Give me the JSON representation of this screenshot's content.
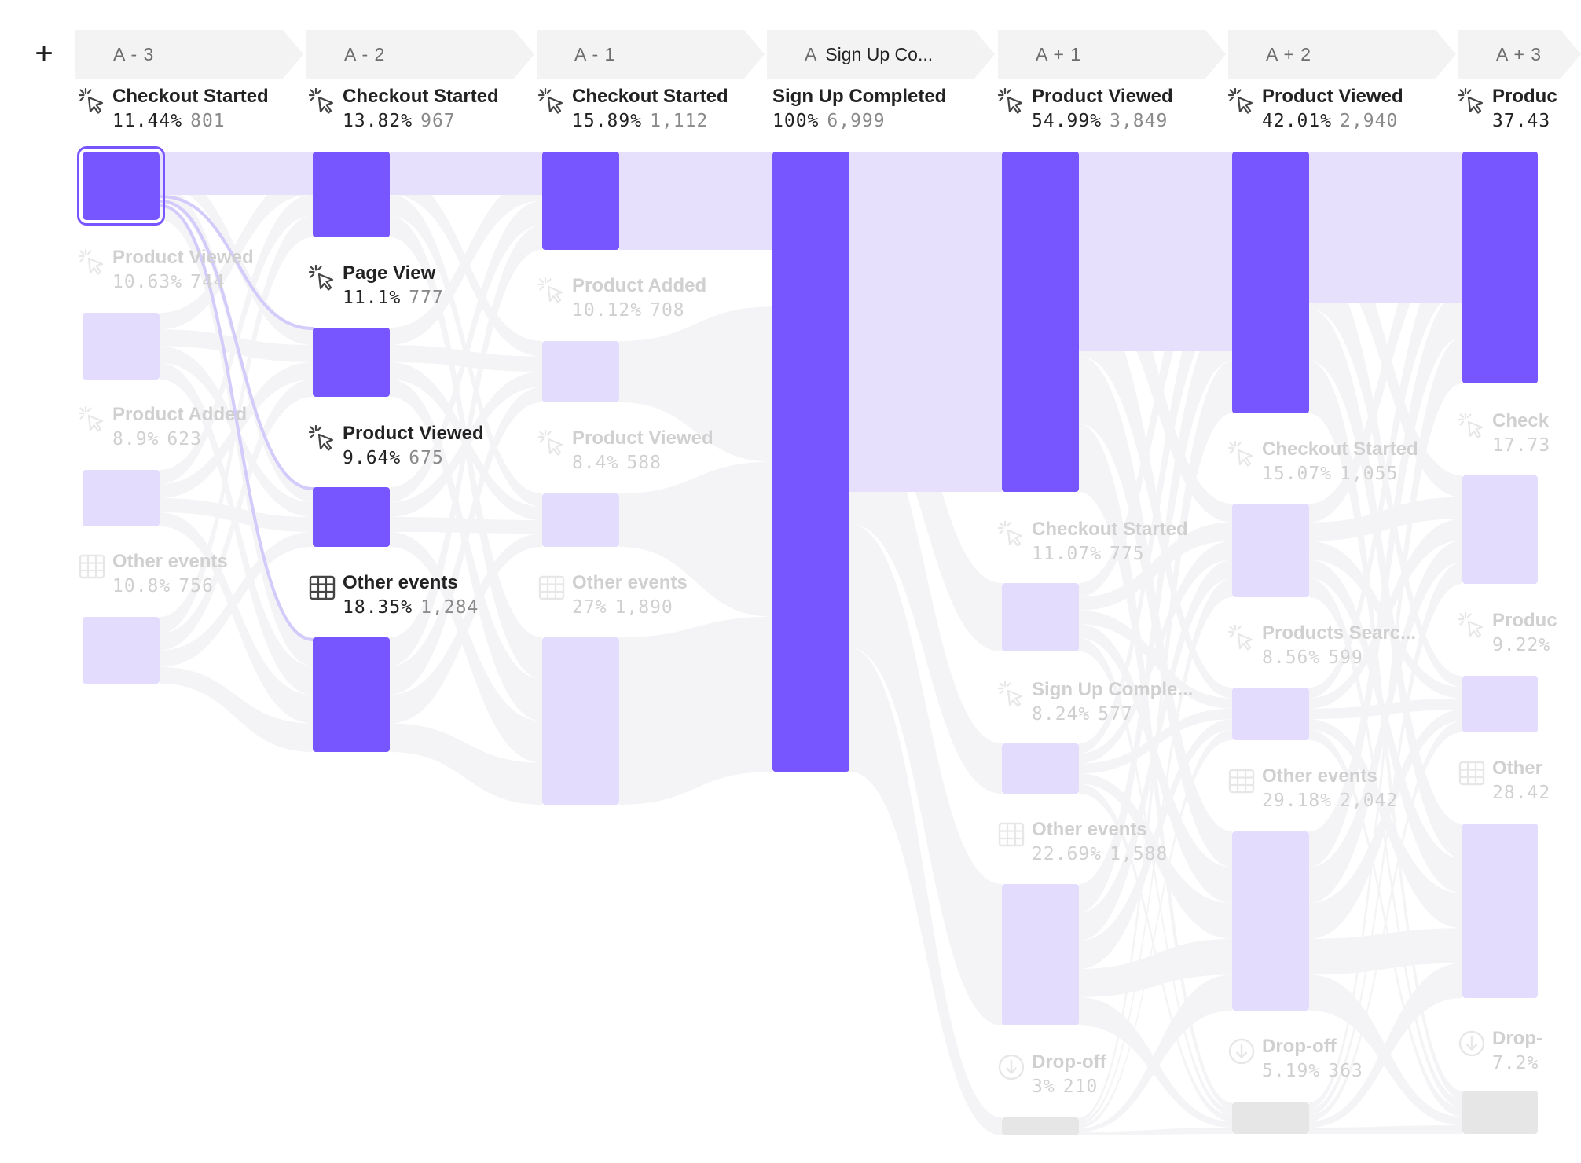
{
  "toolbar": {
    "add_icon": "plus-icon",
    "add_label": "+"
  },
  "colors": {
    "active_bar": "#7856ff",
    "inactive_bar": "#e3dcfd",
    "dropoff_bar": "#e6e6e6",
    "flow_main": "#e6e0fd",
    "flow_faint": "#f4f4f6",
    "flow_highlight": "#d4cbfb",
    "header_bg": "#f3f3f3",
    "dim_text": "#d0d0d0"
  },
  "columns": [
    {
      "tag": "A - 3",
      "name": "",
      "nodes": [
        {
          "name": "Checkout Started",
          "pct": "11.44%",
          "count": "801",
          "icon": "click-cursor-icon",
          "active": true,
          "selected": true,
          "share": 0.1144
        },
        {
          "name": "Product Viewed",
          "pct": "10.63%",
          "count": "744",
          "icon": "click-cursor-icon",
          "active": false,
          "share": 0.1063
        },
        {
          "name": "Product Added",
          "pct": "8.9%",
          "count": "623",
          "icon": "click-cursor-icon",
          "active": false,
          "share": 0.089
        },
        {
          "name": "Other events",
          "pct": "10.8%",
          "count": "756",
          "icon": "grid-icon",
          "active": false,
          "share": 0.108
        }
      ]
    },
    {
      "tag": "A - 2",
      "name": "",
      "nodes": [
        {
          "name": "Checkout Started",
          "pct": "13.82%",
          "count": "967",
          "icon": "click-cursor-icon",
          "active": true,
          "share": 0.1382
        },
        {
          "name": "Page View",
          "pct": "11.1%",
          "count": "777",
          "icon": "click-cursor-icon",
          "active": true,
          "share": 0.111
        },
        {
          "name": "Product Viewed",
          "pct": "9.64%",
          "count": "675",
          "icon": "click-cursor-icon",
          "active": true,
          "share": 0.0964
        },
        {
          "name": "Other events",
          "pct": "18.35%",
          "count": "1,284",
          "icon": "grid-icon",
          "active": true,
          "share": 0.1835
        }
      ]
    },
    {
      "tag": "A - 1",
      "name": "",
      "nodes": [
        {
          "name": "Checkout Started",
          "pct": "15.89%",
          "count": "1,112",
          "icon": "click-cursor-icon",
          "active": true,
          "share": 0.1589
        },
        {
          "name": "Product Added",
          "pct": "10.12%",
          "count": "708",
          "icon": "click-cursor-icon",
          "active": false,
          "share": 0.1012
        },
        {
          "name": "Product Viewed",
          "pct": "8.4%",
          "count": "588",
          "icon": "click-cursor-icon",
          "active": false,
          "share": 0.084
        },
        {
          "name": "Other events",
          "pct": "27%",
          "count": "1,890",
          "icon": "grid-icon",
          "active": false,
          "share": 0.27
        }
      ]
    },
    {
      "tag": "A",
      "name": "Sign Up Co...",
      "nodes": [
        {
          "name": "Sign Up Completed",
          "pct": "100%",
          "count": "6,999",
          "icon": "",
          "active": true,
          "share": 1.0
        }
      ]
    },
    {
      "tag": "A + 1",
      "name": "",
      "nodes": [
        {
          "name": "Product Viewed",
          "pct": "54.99%",
          "count": "3,849",
          "icon": "click-cursor-icon",
          "active": true,
          "share": 0.5499
        },
        {
          "name": "Checkout Started",
          "pct": "11.07%",
          "count": "775",
          "icon": "click-cursor-icon",
          "active": false,
          "share": 0.1107
        },
        {
          "name": "Sign Up Comple...",
          "pct": "8.24%",
          "count": "577",
          "icon": "click-cursor-icon",
          "active": false,
          "share": 0.0824
        },
        {
          "name": "Other events",
          "pct": "22.69%",
          "count": "1,588",
          "icon": "grid-icon",
          "active": false,
          "share": 0.2269
        },
        {
          "name": "Drop-off",
          "pct": "3%",
          "count": "210",
          "icon": "drop-off-icon",
          "active": false,
          "drop": true,
          "share": 0.03
        }
      ]
    },
    {
      "tag": "A + 2",
      "name": "",
      "nodes": [
        {
          "name": "Product Viewed",
          "pct": "42.01%",
          "count": "2,940",
          "icon": "click-cursor-icon",
          "active": true,
          "share": 0.4201
        },
        {
          "name": "Checkout Started",
          "pct": "15.07%",
          "count": "1,055",
          "icon": "click-cursor-icon",
          "active": false,
          "share": 0.1507
        },
        {
          "name": "Products Searc...",
          "pct": "8.56%",
          "count": "599",
          "icon": "click-cursor-icon",
          "active": false,
          "share": 0.0856
        },
        {
          "name": "Other events",
          "pct": "29.18%",
          "count": "2,042",
          "icon": "grid-icon",
          "active": false,
          "share": 0.2918
        },
        {
          "name": "Drop-off",
          "pct": "5.19%",
          "count": "363",
          "icon": "drop-off-icon",
          "active": false,
          "drop": true,
          "share": 0.0519
        }
      ]
    },
    {
      "tag": "A + 3",
      "name": "",
      "nodes": [
        {
          "name": "Produc",
          "pct": "37.43",
          "count": "",
          "icon": "click-cursor-icon",
          "active": true,
          "share": 0.3743
        },
        {
          "name": "Check",
          "pct": "17.73",
          "count": "",
          "icon": "click-cursor-icon",
          "active": false,
          "share": 0.1773
        },
        {
          "name": "Produc",
          "pct": "9.22%",
          "count": "",
          "icon": "click-cursor-icon",
          "active": false,
          "share": 0.0922
        },
        {
          "name": "Other",
          "pct": "28.42",
          "count": "",
          "icon": "grid-icon",
          "active": false,
          "share": 0.2842
        },
        {
          "name": "Drop-",
          "pct": "7.2%",
          "count": "",
          "icon": "drop-off-icon",
          "active": false,
          "drop": true,
          "share": 0.072
        }
      ]
    }
  ]
}
